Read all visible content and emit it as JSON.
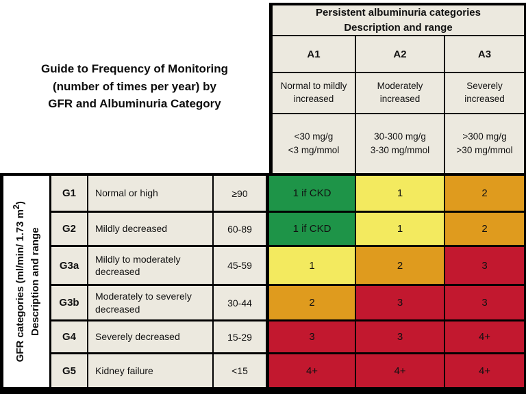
{
  "colors": {
    "cell_bg": "#ece9df",
    "green": "#1e9448",
    "yellow": "#f3ea5f",
    "orange": "#df9b1e",
    "red": "#c2182f",
    "border": "#000000",
    "page_bg": "#ffffff"
  },
  "title": {
    "line1": "Guide to Frequency of Monitoring",
    "line2": "(number of times per year) by",
    "line3": "GFR and Albuminuria Category"
  },
  "albuminuria": {
    "header_line1": "Persistent albuminuria categories",
    "header_line2": "Description and range",
    "columns": [
      {
        "code": "A1",
        "description": "Normal to mildly increased",
        "range_line1": "<30 mg/g",
        "range_line2": "<3 mg/mmol"
      },
      {
        "code": "A2",
        "description": "Moderately increased",
        "range_line1": "30-300 mg/g",
        "range_line2": "3-30 mg/mmol"
      },
      {
        "code": "A3",
        "description": "Severely increased",
        "range_line1": ">300 mg/g",
        "range_line2": ">30 mg/mmol"
      }
    ]
  },
  "gfr_axis": {
    "label_prefix": "GFR categories (ml/min/ 1.73 m",
    "label_sup": "2",
    "label_suffix": ")",
    "label_line2": "Description and range"
  },
  "gfr_rows": [
    {
      "code": "G1",
      "description": "Normal or high",
      "range": "≥90",
      "cells": [
        {
          "text": "1 if CKD",
          "bg": "#1e9448"
        },
        {
          "text": "1",
          "bg": "#f3ea5f"
        },
        {
          "text": "2",
          "bg": "#df9b1e"
        }
      ]
    },
    {
      "code": "G2",
      "description": "Mildly decreased",
      "range": "60-89",
      "cells": [
        {
          "text": "1 if CKD",
          "bg": "#1e9448"
        },
        {
          "text": "1",
          "bg": "#f3ea5f"
        },
        {
          "text": "2",
          "bg": "#df9b1e"
        }
      ]
    },
    {
      "code": "G3a",
      "description": "Mildly to moderately decreased",
      "range": "45-59",
      "cells": [
        {
          "text": "1",
          "bg": "#f3ea5f"
        },
        {
          "text": "2",
          "bg": "#df9b1e"
        },
        {
          "text": "3",
          "bg": "#c2182f"
        }
      ]
    },
    {
      "code": "G3b",
      "description": "Moderately to severely decreased",
      "range": "30-44",
      "cells": [
        {
          "text": "2",
          "bg": "#df9b1e"
        },
        {
          "text": "3",
          "bg": "#c2182f"
        },
        {
          "text": "3",
          "bg": "#c2182f"
        }
      ]
    },
    {
      "code": "G4",
      "description": "Severely decreased",
      "range": "15-29",
      "cells": [
        {
          "text": "3",
          "bg": "#c2182f"
        },
        {
          "text": "3",
          "bg": "#c2182f"
        },
        {
          "text": "4+",
          "bg": "#c2182f"
        }
      ]
    },
    {
      "code": "G5",
      "description": "Kidney failure",
      "range": "<15",
      "cells": [
        {
          "text": "4+",
          "bg": "#c2182f"
        },
        {
          "text": "4+",
          "bg": "#c2182f"
        },
        {
          "text": "4+",
          "bg": "#c2182f"
        }
      ]
    }
  ],
  "chart_data": {
    "type": "heatmap",
    "title": "Guide to Frequency of Monitoring (number of times per year) by GFR and Albuminuria Category",
    "x_axis_title": "Persistent albuminuria categories Description and range",
    "y_axis_title": "GFR categories (ml/min/ 1.73 m2) Description and range",
    "x_categories": [
      "A1",
      "A2",
      "A3"
    ],
    "x_category_descriptions": [
      "Normal to mildly increased (<30 mg/g, <3 mg/mmol)",
      "Moderately increased (30-300 mg/g, 3-30 mg/mmol)",
      "Severely increased (>300 mg/g, >30 mg/mmol)"
    ],
    "y_categories": [
      "G1",
      "G2",
      "G3a",
      "G3b",
      "G4",
      "G5"
    ],
    "y_category_descriptions": [
      "Normal or high (≥90)",
      "Mildly decreased (60-89)",
      "Mildly to moderately decreased (45-59)",
      "Moderately to severely decreased (30-44)",
      "Severely decreased (15-29)",
      "Kidney failure (<15)"
    ],
    "values": [
      [
        "1 if CKD",
        "1",
        "2"
      ],
      [
        "1 if CKD",
        "1",
        "2"
      ],
      [
        "1",
        "2",
        "3"
      ],
      [
        "2",
        "3",
        "3"
      ],
      [
        "3",
        "3",
        "4+"
      ],
      [
        "4+",
        "4+",
        "4+"
      ]
    ],
    "cell_colors": [
      [
        "green",
        "yellow",
        "orange"
      ],
      [
        "green",
        "yellow",
        "orange"
      ],
      [
        "yellow",
        "orange",
        "red"
      ],
      [
        "orange",
        "red",
        "red"
      ],
      [
        "red",
        "red",
        "red"
      ],
      [
        "red",
        "red",
        "red"
      ]
    ],
    "legend_position": "none",
    "grid": true
  }
}
